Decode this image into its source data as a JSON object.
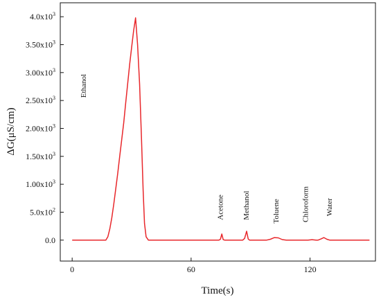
{
  "chart_data": {
    "type": "line",
    "xlabel": "Time(s)",
    "ylabel": "ΔG(μS/cm)",
    "xlim": [
      -6,
      153
    ],
    "ylim": [
      -375,
      4250
    ],
    "x_ticks": [
      {
        "value": 0,
        "label": "0"
      },
      {
        "value": 60,
        "label": "60"
      },
      {
        "value": 120,
        "label": "120"
      }
    ],
    "y_ticks": [
      {
        "value": 0,
        "base": "0.0"
      },
      {
        "value": 500,
        "base": "5.0x10",
        "exp": "2"
      },
      {
        "value": 1000,
        "base": "1.00x10",
        "exp": "3"
      },
      {
        "value": 1500,
        "base": "1.50x10",
        "exp": "3"
      },
      {
        "value": 2000,
        "base": "2.00x10",
        "exp": "3"
      },
      {
        "value": 2500,
        "base": "2.50x10",
        "exp": "3"
      },
      {
        "value": 3000,
        "base": "3.00x10",
        "exp": "3"
      },
      {
        "value": 3500,
        "base": "3.50x10",
        "exp": "3"
      },
      {
        "value": 4000,
        "base": "4.0x10",
        "exp": "3"
      }
    ],
    "series": [
      {
        "color": "#e8262a",
        "points": [
          [
            0,
            0
          ],
          [
            17,
            0
          ],
          [
            18,
            60
          ],
          [
            19,
            200
          ],
          [
            20,
            400
          ],
          [
            21,
            650
          ],
          [
            22,
            920
          ],
          [
            23,
            1200
          ],
          [
            24,
            1500
          ],
          [
            25,
            1800
          ],
          [
            26,
            2100
          ],
          [
            27,
            2450
          ],
          [
            28,
            2800
          ],
          [
            29,
            3150
          ],
          [
            30,
            3450
          ],
          [
            31,
            3750
          ],
          [
            32,
            3980
          ],
          [
            33,
            3500
          ],
          [
            34,
            2800
          ],
          [
            35,
            1800
          ],
          [
            35.8,
            900
          ],
          [
            36.5,
            300
          ],
          [
            37.3,
            60
          ],
          [
            38.5,
            0
          ],
          [
            74,
            0
          ],
          [
            74.8,
            15
          ],
          [
            75.5,
            110
          ],
          [
            76.2,
            10
          ],
          [
            77,
            0
          ],
          [
            86,
            0
          ],
          [
            87,
            30
          ],
          [
            88,
            160
          ],
          [
            88.8,
            20
          ],
          [
            89.5,
            0
          ],
          [
            98,
            0
          ],
          [
            100,
            15
          ],
          [
            102,
            45
          ],
          [
            104,
            40
          ],
          [
            106,
            10
          ],
          [
            108,
            0
          ],
          [
            119,
            0
          ],
          [
            121,
            8
          ],
          [
            123,
            0
          ],
          [
            124,
            0
          ],
          [
            125.5,
            20
          ],
          [
            127,
            45
          ],
          [
            128.5,
            15
          ],
          [
            130,
            0
          ],
          [
            150,
            0
          ]
        ]
      }
    ],
    "annotations": [
      {
        "text": "Ethanol",
        "x": 7,
        "y": 2550
      },
      {
        "text": "Acetone",
        "x": 76,
        "y": 360
      },
      {
        "text": "Methanol",
        "x": 89,
        "y": 360
      },
      {
        "text": "Toluene",
        "x": 104,
        "y": 300
      },
      {
        "text": "Chloroform",
        "x": 119,
        "y": 320
      },
      {
        "text": "Water",
        "x": 131,
        "y": 430
      }
    ],
    "grid": false
  }
}
